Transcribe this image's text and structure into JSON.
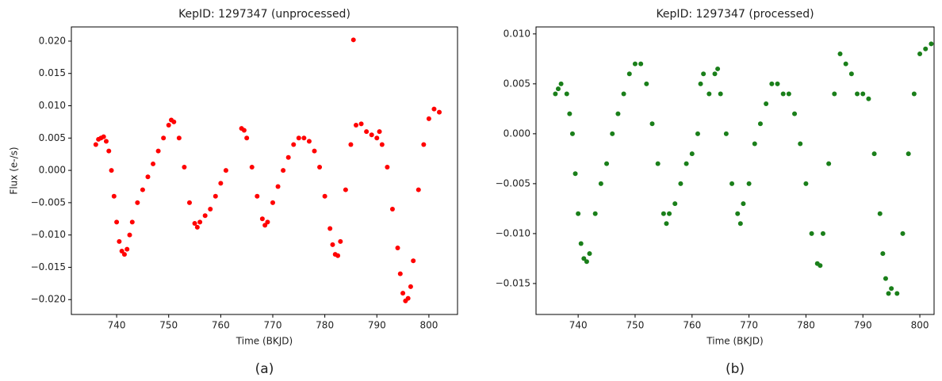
{
  "chart_data": [
    {
      "type": "scatter",
      "title": "KepID: 1297347 (unprocessed)",
      "xlabel": "Time (BKJD)",
      "ylabel": "Flux (e-/s)",
      "caption": "(a)",
      "color": "#ff0000",
      "x": [
        736,
        736.5,
        737,
        737.5,
        738,
        738.5,
        739,
        739.5,
        740,
        740.5,
        741,
        741.5,
        742,
        742.5,
        743,
        744,
        745,
        746,
        747,
        748,
        749,
        750,
        750.5,
        751,
        752,
        753,
        754,
        755,
        755.5,
        756,
        757,
        758,
        759,
        760,
        761,
        764,
        764.5,
        765,
        766,
        767,
        768,
        768.5,
        769,
        770,
        771,
        772,
        773,
        774,
        775,
        776,
        777,
        778,
        779,
        780,
        781,
        781.5,
        782,
        782.5,
        783,
        784,
        785,
        786,
        787,
        788,
        789,
        790,
        791,
        792,
        793,
        794,
        794.5,
        795,
        795.5,
        796,
        796.5,
        797,
        798,
        799,
        800,
        801,
        802,
        785.5,
        790.5
      ],
      "values": [
        0.004,
        0.0048,
        0.005,
        0.0052,
        0.0045,
        0.003,
        0.0,
        -0.004,
        -0.008,
        -0.011,
        -0.0125,
        -0.013,
        -0.0122,
        -0.01,
        -0.008,
        -0.005,
        -0.003,
        -0.001,
        0.001,
        0.003,
        0.005,
        0.007,
        0.0078,
        0.0075,
        0.005,
        0.0005,
        -0.005,
        -0.0082,
        -0.0088,
        -0.008,
        -0.007,
        -0.006,
        -0.004,
        -0.002,
        0.0,
        0.0065,
        0.0062,
        0.005,
        0.0005,
        -0.004,
        -0.0075,
        -0.0085,
        -0.008,
        -0.005,
        -0.0025,
        0.0,
        0.002,
        0.004,
        0.005,
        0.005,
        0.0045,
        0.003,
        0.0005,
        -0.004,
        -0.009,
        -0.0115,
        -0.013,
        -0.0132,
        -0.011,
        -0.003,
        0.004,
        0.007,
        0.0072,
        0.006,
        0.0055,
        0.005,
        0.004,
        0.0005,
        -0.006,
        -0.012,
        -0.016,
        -0.019,
        -0.0202,
        -0.0198,
        -0.018,
        -0.014,
        -0.003,
        0.004,
        0.008,
        0.0095,
        0.009,
        0.0202,
        0.006
      ],
      "xlim": [
        731.3,
        805.5
      ],
      "ylim": [
        -0.0223,
        0.0222
      ],
      "xticks": [
        740,
        750,
        760,
        770,
        780,
        790,
        800
      ],
      "yticks": [
        {
          "value": -0.02,
          "label": "−0.020"
        },
        {
          "value": -0.015,
          "label": "−0.015"
        },
        {
          "value": -0.01,
          "label": "−0.010"
        },
        {
          "value": -0.005,
          "label": "−0.005"
        },
        {
          "value": 0,
          "label": "0.000"
        },
        {
          "value": 0.005,
          "label": "0.005"
        },
        {
          "value": 0.01,
          "label": "0.010"
        },
        {
          "value": 0.015,
          "label": "0.015"
        },
        {
          "value": 0.02,
          "label": "0.020"
        }
      ]
    },
    {
      "type": "scatter",
      "title": "KepID: 1297347 (processed)",
      "xlabel": "Time (BKJD)",
      "caption": "(b)",
      "color": "#1a7f1a",
      "x": [
        736,
        736.5,
        737,
        738,
        738.5,
        739,
        739.5,
        740,
        740.5,
        741,
        741.5,
        742,
        743,
        744,
        745,
        746,
        747,
        748,
        749,
        750,
        751,
        752,
        753,
        754,
        755,
        755.5,
        756,
        757,
        758,
        759,
        760,
        761,
        761.5,
        762,
        763,
        764,
        764.5,
        765,
        766,
        767,
        768,
        768.5,
        769,
        770,
        771,
        772,
        773,
        774,
        775,
        776,
        777,
        778,
        779,
        780,
        781,
        782,
        782.5,
        783,
        784,
        785,
        786,
        787,
        788,
        789,
        790,
        791,
        792,
        793,
        793.5,
        794,
        794.5,
        795,
        796,
        797,
        798,
        799,
        800,
        801,
        802
      ],
      "values": [
        0.004,
        0.0045,
        0.005,
        0.004,
        0.002,
        0.0,
        -0.004,
        -0.008,
        -0.011,
        -0.0125,
        -0.0128,
        -0.012,
        -0.008,
        -0.005,
        -0.003,
        0.0,
        0.002,
        0.004,
        0.006,
        0.007,
        0.007,
        0.005,
        0.001,
        -0.003,
        -0.008,
        -0.009,
        -0.008,
        -0.007,
        -0.005,
        -0.003,
        -0.002,
        0.0,
        0.005,
        0.006,
        0.004,
        0.006,
        0.0065,
        0.004,
        0.0,
        -0.005,
        -0.008,
        -0.009,
        -0.007,
        -0.005,
        -0.001,
        0.001,
        0.003,
        0.005,
        0.005,
        0.004,
        0.004,
        0.002,
        -0.001,
        -0.005,
        -0.01,
        -0.013,
        -0.0132,
        -0.01,
        -0.003,
        0.004,
        0.008,
        0.007,
        0.006,
        0.004,
        0.004,
        0.0035,
        -0.002,
        -0.008,
        -0.012,
        -0.0145,
        -0.016,
        -0.0155,
        -0.016,
        -0.01,
        -0.002,
        0.004,
        0.008,
        0.0085,
        0.009
      ],
      "xlim": [
        732.6,
        802.5
      ],
      "ylim": [
        -0.0181,
        0.0107
      ],
      "xticks": [
        740,
        750,
        760,
        770,
        780,
        790,
        800
      ],
      "yticks": [
        {
          "value": -0.015,
          "label": "−0.015"
        },
        {
          "value": -0.01,
          "label": "−0.010"
        },
        {
          "value": -0.005,
          "label": "−0.005"
        },
        {
          "value": 0,
          "label": "0.000"
        },
        {
          "value": 0.005,
          "label": "0.005"
        },
        {
          "value": 0.01,
          "label": "0.010"
        }
      ]
    }
  ]
}
